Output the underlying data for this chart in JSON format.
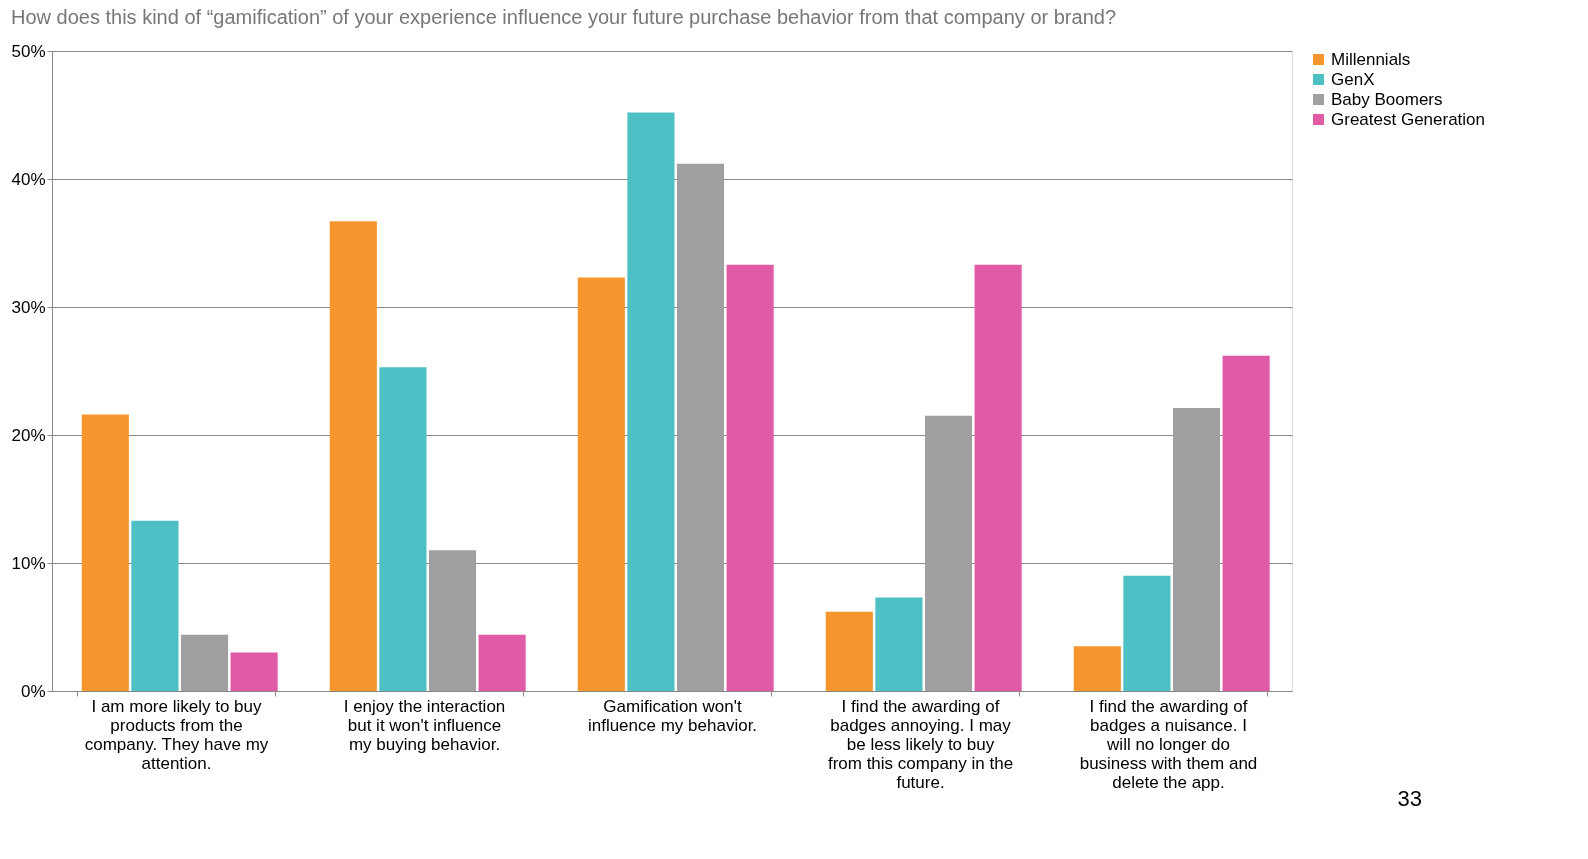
{
  "chart_data": {
    "type": "bar",
    "title": "How does this kind of “gamification” of your experience influence your future purchase behavior from that company or brand?",
    "categories": [
      "I am more likely to buy products from the company. They have my attention.",
      "I enjoy the interaction but it won't influence my buying behavior.",
      "Gamification won't influence my behavior.",
      "I find the awarding of badges annoying. I may be less likely to buy from this company in the future.",
      "I find the awarding of badges a nuisance. I will no longer do business with them and delete the app."
    ],
    "series": [
      {
        "name": "Millennials",
        "color": "#f7962e",
        "values": [
          21.6,
          36.7,
          32.3,
          6.2,
          3.5
        ]
      },
      {
        "name": "GenX",
        "color": "#4cc0c4",
        "values": [
          13.3,
          25.3,
          45.2,
          7.3,
          9.0
        ]
      },
      {
        "name": "Baby Boomers",
        "color": "#a0a0a2",
        "values": [
          4.4,
          11.0,
          41.2,
          21.5,
          22.1
        ]
      },
      {
        "name": "Greatest Generation",
        "color": "#e05aa6",
        "values": [
          3.0,
          4.4,
          33.3,
          33.3,
          26.2
        ]
      }
    ],
    "ylim": [
      0,
      50
    ],
    "yticks": [
      {
        "value": 0,
        "label": "0%"
      },
      {
        "value": 10,
        "label": "10%"
      },
      {
        "value": 20,
        "label": "20%"
      },
      {
        "value": 30,
        "label": "30%"
      },
      {
        "value": 40,
        "label": "40%"
      },
      {
        "value": 50,
        "label": "50%"
      }
    ],
    "grid": "y",
    "legend": "right",
    "annotations": [
      "33"
    ]
  }
}
